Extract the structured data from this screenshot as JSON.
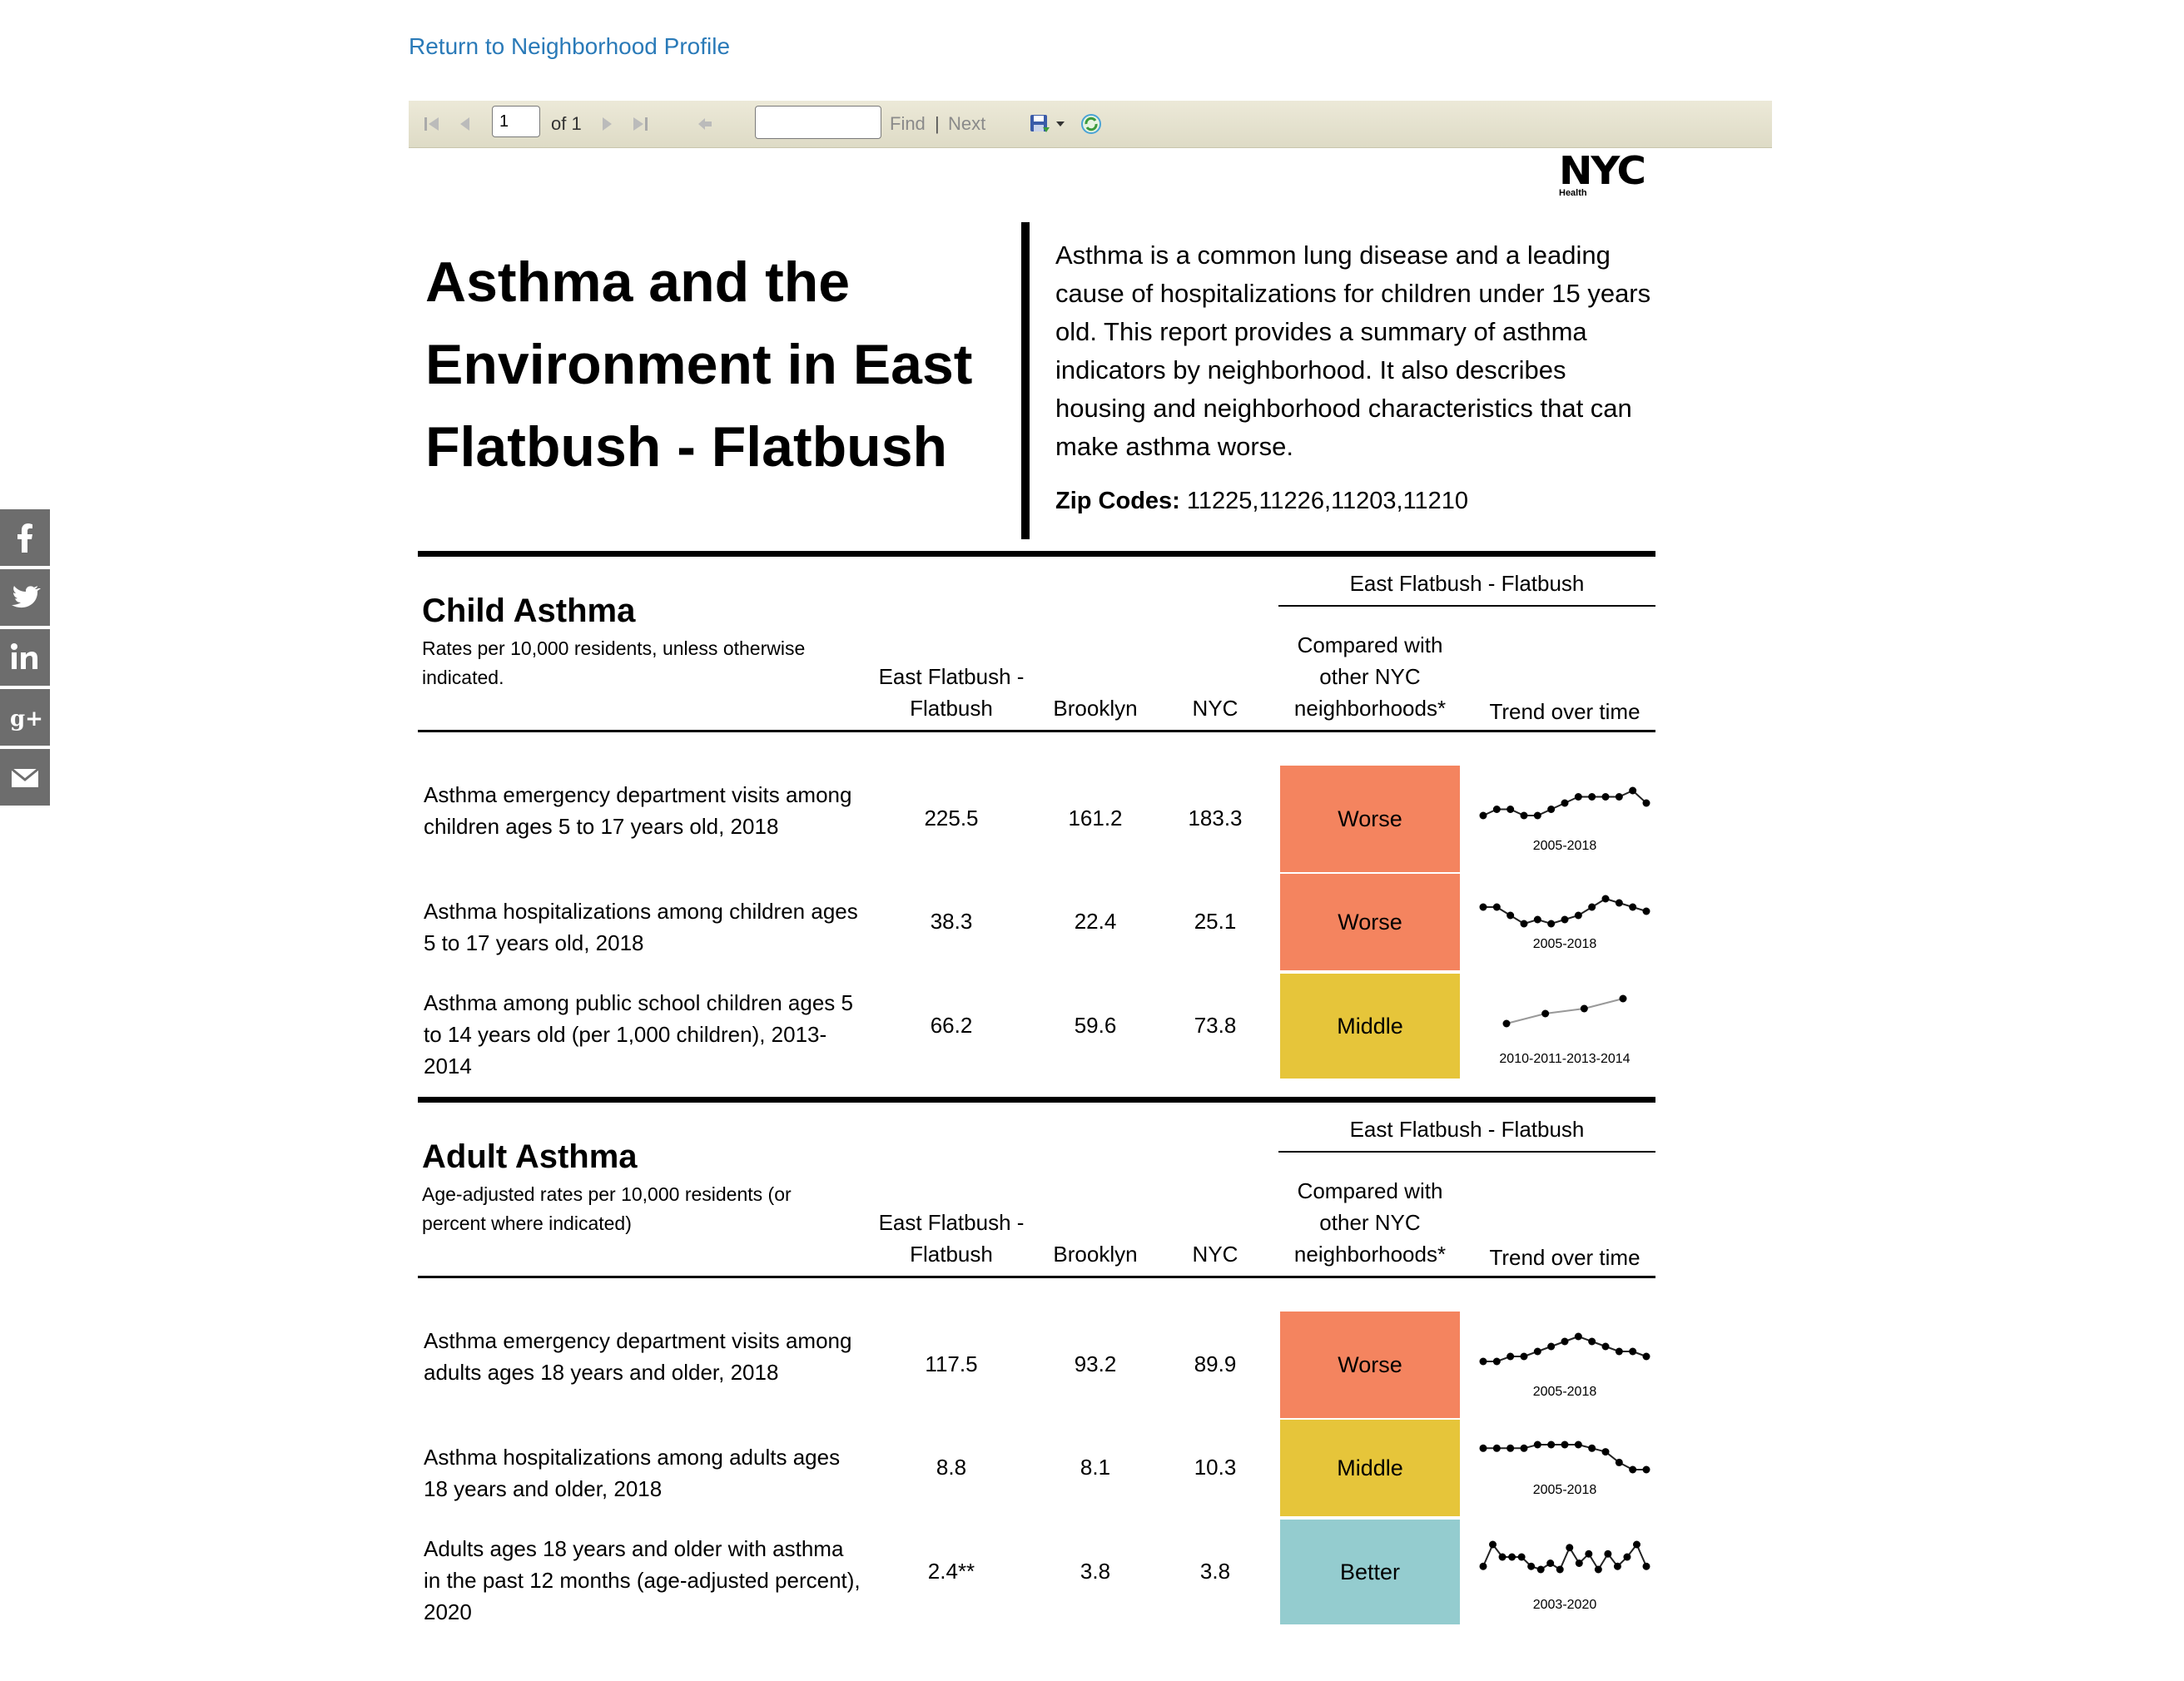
{
  "nav": {
    "return_link": "Return to Neighborhood Profile"
  },
  "toolbar": {
    "page_value": "1",
    "of_label": "of 1",
    "find_label": "Find",
    "separator": "|",
    "next_label": "Next",
    "icons": [
      "first-page-icon",
      "previous-page-icon",
      "next-page-icon",
      "last-page-icon",
      "back-icon",
      "save-icon",
      "dropdown-arrow-icon",
      "refresh-icon"
    ]
  },
  "logo": {
    "text": "NYC",
    "sub": "Health"
  },
  "social": [
    "facebook-icon",
    "twitter-icon",
    "linkedin-icon",
    "google-plus-icon",
    "email-icon"
  ],
  "header": {
    "title": "Asthma and the Environment in East Flatbush - Flatbush",
    "intro": "Asthma is a common lung disease and a leading cause of hospitalizations for children under 15 years old. This report provides a summary of asthma indicators by neighborhood. It also describes housing and neighborhood characteristics that can make asthma worse.",
    "zip_label": "Zip Codes:",
    "zip_value": "11225,11226,11203,11210"
  },
  "columns": {
    "group": "East Flatbush - Flatbush",
    "neighborhood": "East Flatbush - Flatbush",
    "borough": "Brooklyn",
    "city": "NYC",
    "compared": "Compared with other NYC neighborhoods*",
    "trend": "Trend over time"
  },
  "colors": {
    "Worse": "#f4845f",
    "Middle": "#e6c53a",
    "Better": "#94cccf"
  },
  "sections": [
    {
      "title": "Child Asthma",
      "subtitle": "Rates per 10,000 residents, unless otherwise indicated.",
      "rows": [
        {
          "label": "Asthma emergency department visits among children ages 5 to 17 years old, 2018",
          "neighborhood": "225.5",
          "borough": "161.2",
          "city": "183.3",
          "compared": "Worse",
          "trend_label": "2005-2018",
          "trend": [
            4,
            5,
            5,
            4,
            4,
            5,
            6,
            7,
            7,
            7,
            7,
            8,
            6
          ]
        },
        {
          "label": "Asthma hospitalizations among children ages 5 to 17 years old, 2018",
          "neighborhood": "38.3",
          "borough": "22.4",
          "city": "25.1",
          "compared": "Worse",
          "trend_label": "2005-2018",
          "trend": [
            6,
            6,
            4,
            2,
            3,
            2,
            3,
            4,
            6,
            8,
            7,
            6,
            5
          ]
        },
        {
          "label": "Asthma among public school children ages 5 to 14 years old (per 1,000 children), 2013-2014",
          "neighborhood": "66.2",
          "borough": "59.6",
          "city": "73.8",
          "compared": "Middle",
          "trend_label": "2010-2011-2013-2014",
          "trend": [
            2,
            4,
            5,
            7
          ]
        }
      ]
    },
    {
      "title": "Adult Asthma",
      "subtitle": "Age-adjusted rates per 10,000 residents (or percent where indicated)",
      "rows": [
        {
          "label": "Asthma emergency department visits among adults ages 18 years and older, 2018",
          "neighborhood": "117.5",
          "borough": "93.2",
          "city": "89.9",
          "compared": "Worse",
          "trend_label": "2005-2018",
          "trend": [
            3,
            3,
            4,
            4,
            5,
            6,
            7,
            8,
            7,
            6,
            5,
            5,
            4
          ]
        },
        {
          "label": "Asthma hospitalizations among adults ages 18 years and older, 2018",
          "neighborhood": "8.8",
          "borough": "8.1",
          "city": "10.3",
          "compared": "Middle",
          "trend_label": "2005-2018",
          "trend": [
            7,
            7,
            7,
            7,
            8,
            8,
            8,
            8,
            7,
            6,
            3,
            1,
            1
          ]
        },
        {
          "label": "Adults ages 18 years and older with asthma in the past 12 months (age-adjusted percent), 2020",
          "neighborhood": "2.4**",
          "borough": "3.8",
          "city": "3.8",
          "compared": "Better",
          "trend_label": "2003-2020",
          "trend": [
            2,
            9,
            5,
            5,
            5,
            2,
            1,
            3,
            1,
            8,
            3,
            6,
            1,
            6,
            2,
            5,
            9,
            2
          ]
        }
      ]
    }
  ]
}
